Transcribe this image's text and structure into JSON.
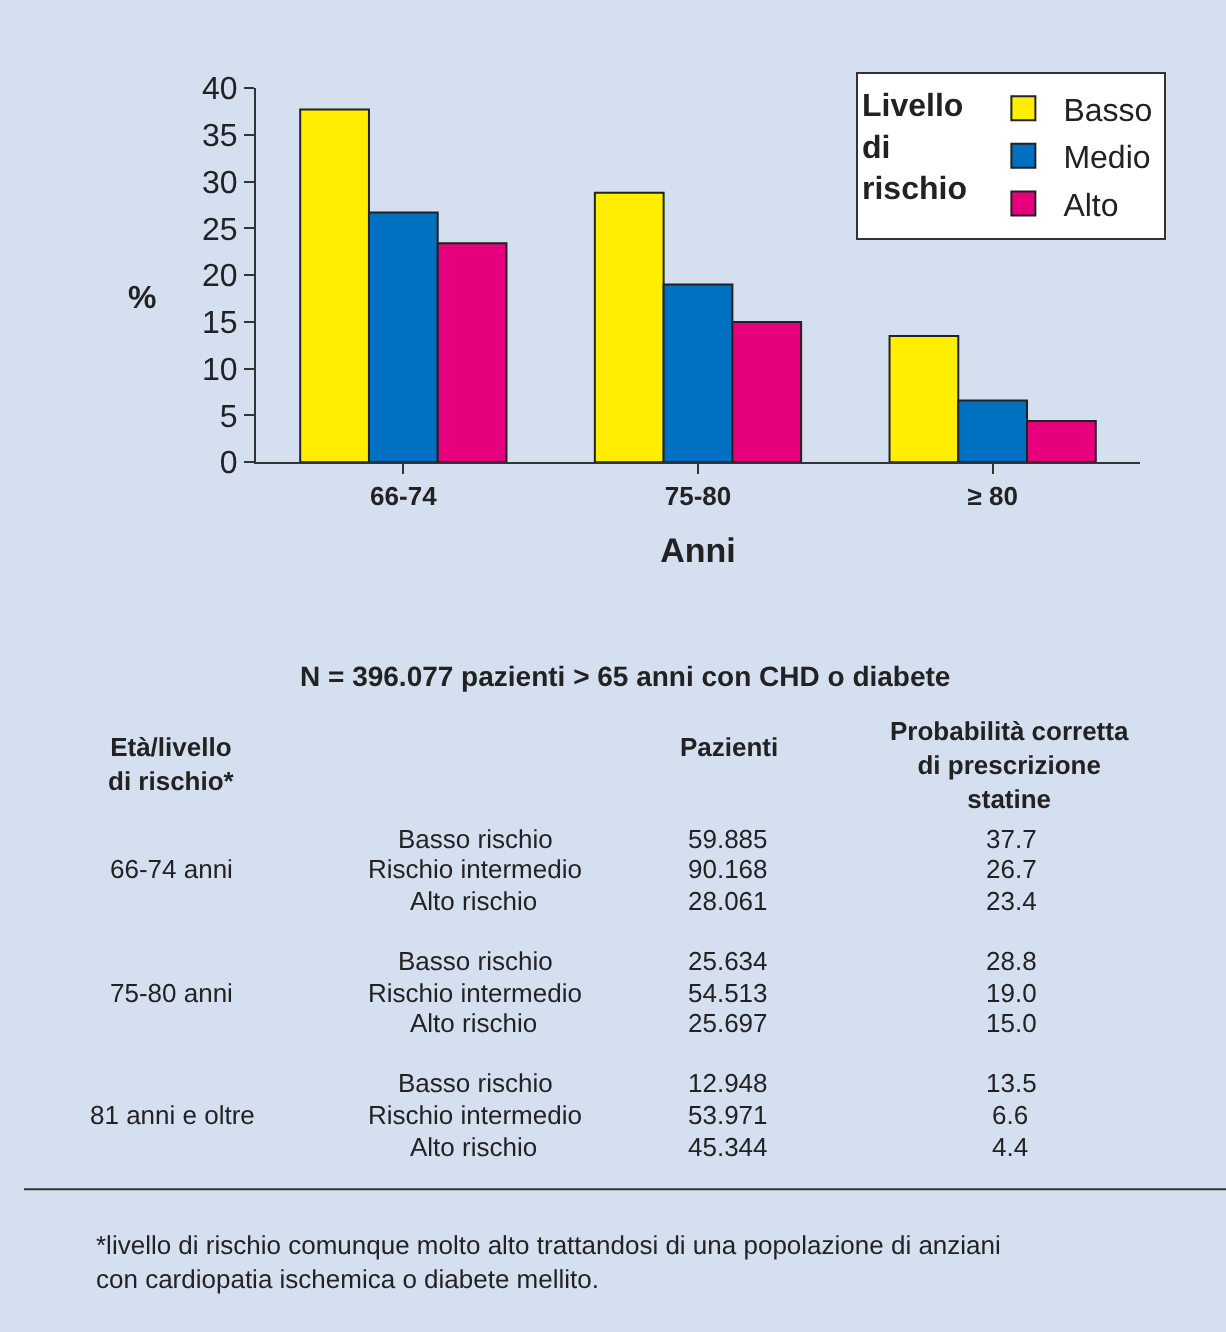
{
  "chart_data": {
    "type": "bar",
    "categories": [
      "66-74",
      "75-80",
      "≥ 80"
    ],
    "xlabel": "Anni",
    "ylabel": "%",
    "legend_title": "Livello di rischio",
    "series": [
      {
        "name": "Basso",
        "color": "#ffee00",
        "values": [
          37.7,
          28.8,
          13.5
        ]
      },
      {
        "name": "Medio",
        "color": "#0070c0",
        "values": [
          26.7,
          19.0,
          6.6
        ]
      },
      {
        "name": "Alto",
        "color": "#e6007e",
        "values": [
          23.4,
          15.0,
          4.4
        ]
      }
    ],
    "ylim": [
      0,
      40
    ],
    "yticks": [
      0,
      5,
      10,
      15,
      20,
      25,
      30,
      35,
      40
    ],
    "grid": false,
    "legend": "top right",
    "annotations": [
      "N = 396.077 pazienti > 65 anni con CHD o diabete",
      "Età/livello di rischio*",
      "Pazienti",
      "Probabilità corretta di prescrizione statine",
      "66-74 anni",
      "75-80 anni",
      "81 anni e oltre",
      "Basso rischio",
      "Rischio intermedio",
      "Alto rischio",
      "Basso rischio",
      "Rischio intermedio",
      "Alto rischio",
      "Basso rischio",
      "Rischio intermedio",
      "Alto rischio",
      "59.885",
      "90.168",
      "28.061",
      "25.634",
      "54.513",
      "25.697",
      "12.948",
      "53.971",
      "45.344",
      "37.7",
      "26.7",
      "23.4",
      "28.8",
      "19.0",
      "15.0",
      "13.5",
      "6.6",
      "4.4",
      "*livello di rischio comunque molto alto trattandosi di una popolazione di anziani con cardiopatia ischemica o diabete mellito."
    ]
  }
}
